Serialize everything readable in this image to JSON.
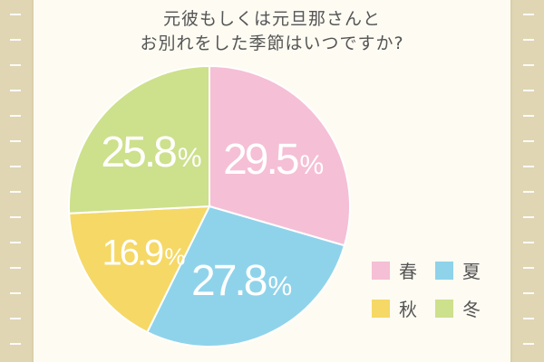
{
  "title": {
    "line1": "元彼もしくは元旦那さんと",
    "line2": "お別れをした季節はいつですか?"
  },
  "chart_data": {
    "type": "pie",
    "title": "元彼もしくは元旦那さんとお別れをした季節はいつですか?",
    "slices": [
      {
        "label": "春",
        "value": 29.5,
        "display": "29.5",
        "color": "#f5bfd5"
      },
      {
        "label": "夏",
        "value": 27.8,
        "display": "27.8",
        "color": "#8fd3ea"
      },
      {
        "label": "秋",
        "value": 16.9,
        "display": "16.9",
        "color": "#f5d866"
      },
      {
        "label": "冬",
        "value": 25.8,
        "display": "25.8",
        "color": "#cde08c"
      }
    ],
    "unit": "%",
    "start": "12 o'clock",
    "direction": "clockwise",
    "legend_position": "bottom-right"
  },
  "colors": {
    "background": "#d9cfa9",
    "card": "#fdfbf2",
    "label_text": "#ffffff",
    "title_text": "#555555"
  }
}
